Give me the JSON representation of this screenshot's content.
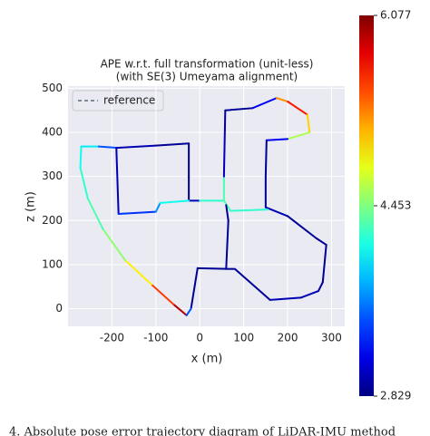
{
  "chart_data": {
    "type": "line",
    "title": "APE w.r.t. full transformation (unit-less)",
    "subtitle": "(with SE(3) Umeyama alignment)",
    "x_label": "x (m)",
    "y_label": "z (m)",
    "xlim": [
      -300,
      330
    ],
    "ylim": [
      -40,
      505
    ],
    "xticks": [
      -200,
      -100,
      0,
      100,
      200,
      300
    ],
    "yticks": [
      0,
      100,
      200,
      300,
      400,
      500
    ],
    "grid": true,
    "legend": "upper left",
    "series": [
      {
        "name": "reference",
        "color": "#5a6a78",
        "x": [
          -30,
          -60,
          -110,
          -170,
          -220,
          -255,
          -272,
          -270,
          -230,
          -190,
          -100,
          -25,
          -25,
          -25,
          0,
          55,
          55,
          58,
          120,
          175,
          200,
          245,
          250,
          200,
          152,
          150,
          150,
          200,
          265,
          288,
          280,
          270,
          230,
          160,
          80,
          -5,
          -20,
          -30,
          null,
          -190,
          -185,
          -100,
          -90,
          -25,
          null,
          55,
          70,
          155,
          null,
          60,
          65,
          60
        ],
        "values": [
          -15,
          10,
          55,
          110,
          180,
          250,
          320,
          368,
          368,
          365,
          370,
          375,
          300,
          245,
          245,
          245,
          300,
          450,
          455,
          478,
          470,
          440,
          400,
          385,
          382,
          300,
          230,
          210,
          160,
          145,
          60,
          40,
          25,
          20,
          90,
          92,
          0,
          -15,
          null,
          365,
          215,
          220,
          240,
          245,
          null,
          245,
          222,
          225,
          null,
          90,
          200,
          235
        ],
        "ape": [
          5.9,
          5.5,
          4.9,
          4.5,
          4.3,
          4.2,
          4.1,
          4.0,
          3.5,
          3.0,
          2.9,
          2.9,
          2.9,
          3.0,
          4.2,
          4.3,
          3.0,
          2.9,
          3.2,
          5.2,
          5.6,
          5.0,
          4.6,
          3.2,
          2.9,
          2.9,
          3.0,
          2.9,
          2.9,
          2.9,
          2.9,
          3.0,
          3.0,
          2.9,
          2.9,
          2.9,
          3.5,
          5.9,
          null,
          3.0,
          3.4,
          3.7,
          4.1,
          4.2,
          null,
          4.3,
          4.2,
          3.6,
          null,
          2.9,
          2.9,
          3.0
        ]
      }
    ],
    "colorbar": {
      "lim": [
        2.829,
        6.077
      ],
      "ticks": [
        2.829,
        4.453,
        6.077
      ]
    },
    "caption": "4. Absolute pose error trajectory diagram of LiDAR-IMU method"
  }
}
